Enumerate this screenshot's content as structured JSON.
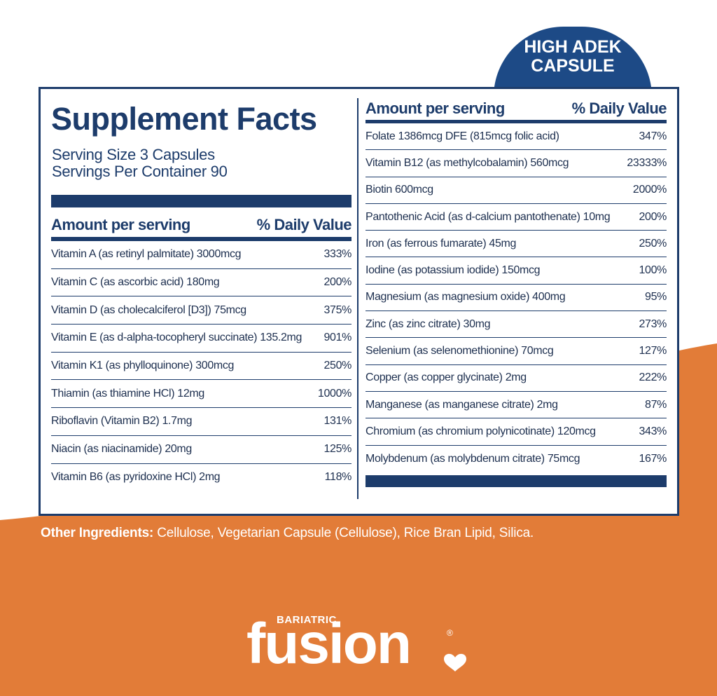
{
  "badge": {
    "lines": [
      "HIGH ADEK",
      "CAPSULE"
    ]
  },
  "panel": {
    "title": "Supplement Facts",
    "serving_size": "Serving Size 3 Capsules",
    "servings_per_container": "Servings Per Container 90",
    "left": {
      "header": {
        "amount": "Amount per serving",
        "daily_value": "% Daily Value"
      },
      "rows": [
        [
          "Vitamin A (as retinyl palmitate) 3000mcg",
          "333%"
        ],
        [
          "Vitamin C (as ascorbic acid) 180mg",
          "200%"
        ],
        [
          "Vitamin D (as cholecalciferol [D3]) 75mcg",
          "375%"
        ],
        [
          "Vitamin E (as d-alpha-tocopheryl succinate) 135.2mg",
          "901%"
        ],
        [
          "Vitamin K1 (as phylloquinone) 300mcg",
          "250%"
        ],
        [
          "Thiamin (as thiamine HCl) 12mg",
          "1000%"
        ],
        [
          "Riboflavin (Vitamin B2) 1.7mg",
          "131%"
        ],
        [
          "Niacin (as niacinamide) 20mg",
          "125%"
        ],
        [
          "Vitamin B6 (as pyridoxine HCl) 2mg",
          "118%"
        ]
      ]
    },
    "right": {
      "header": {
        "amount": "Amount per serving",
        "daily_value": "% Daily Value"
      },
      "rows": [
        [
          "Folate 1386mcg DFE (815mcg folic acid)",
          "347%"
        ],
        [
          "Vitamin B12 (as methylcobalamin) 560mcg",
          "23333%"
        ],
        [
          "Biotin 600mcg",
          "2000%"
        ],
        [
          "Pantothenic Acid (as d-calcium pantothenate) 10mg",
          "200%"
        ],
        [
          "Iron (as ferrous fumarate) 45mg",
          "250%"
        ],
        [
          "Iodine (as potassium iodide) 150mcg",
          "100%"
        ],
        [
          "Magnesium (as magnesium oxide) 400mg",
          "95%"
        ],
        [
          "Zinc (as zinc citrate) 30mg",
          "273%"
        ],
        [
          "Selenium (as selenomethionine) 70mcg",
          "127%"
        ],
        [
          "Copper (as copper glycinate) 2mg",
          "222%"
        ],
        [
          "Manganese (as manganese citrate) 2mg",
          "87%"
        ],
        [
          "Chromium (as chromium polynicotinate) 120mcg",
          "343%"
        ],
        [
          "Molybdenum (as molybdenum citrate) 75mcg",
          "167%"
        ]
      ]
    }
  },
  "other_ingredients": {
    "label": "Other Ingredients:",
    "text": "Cellulose, Vegetarian Capsule (Cellulose), Rice Bran Lipid, Silica."
  },
  "brand": {
    "tagline": "BARIATRIC",
    "name": "fusion",
    "mark": "®"
  }
}
